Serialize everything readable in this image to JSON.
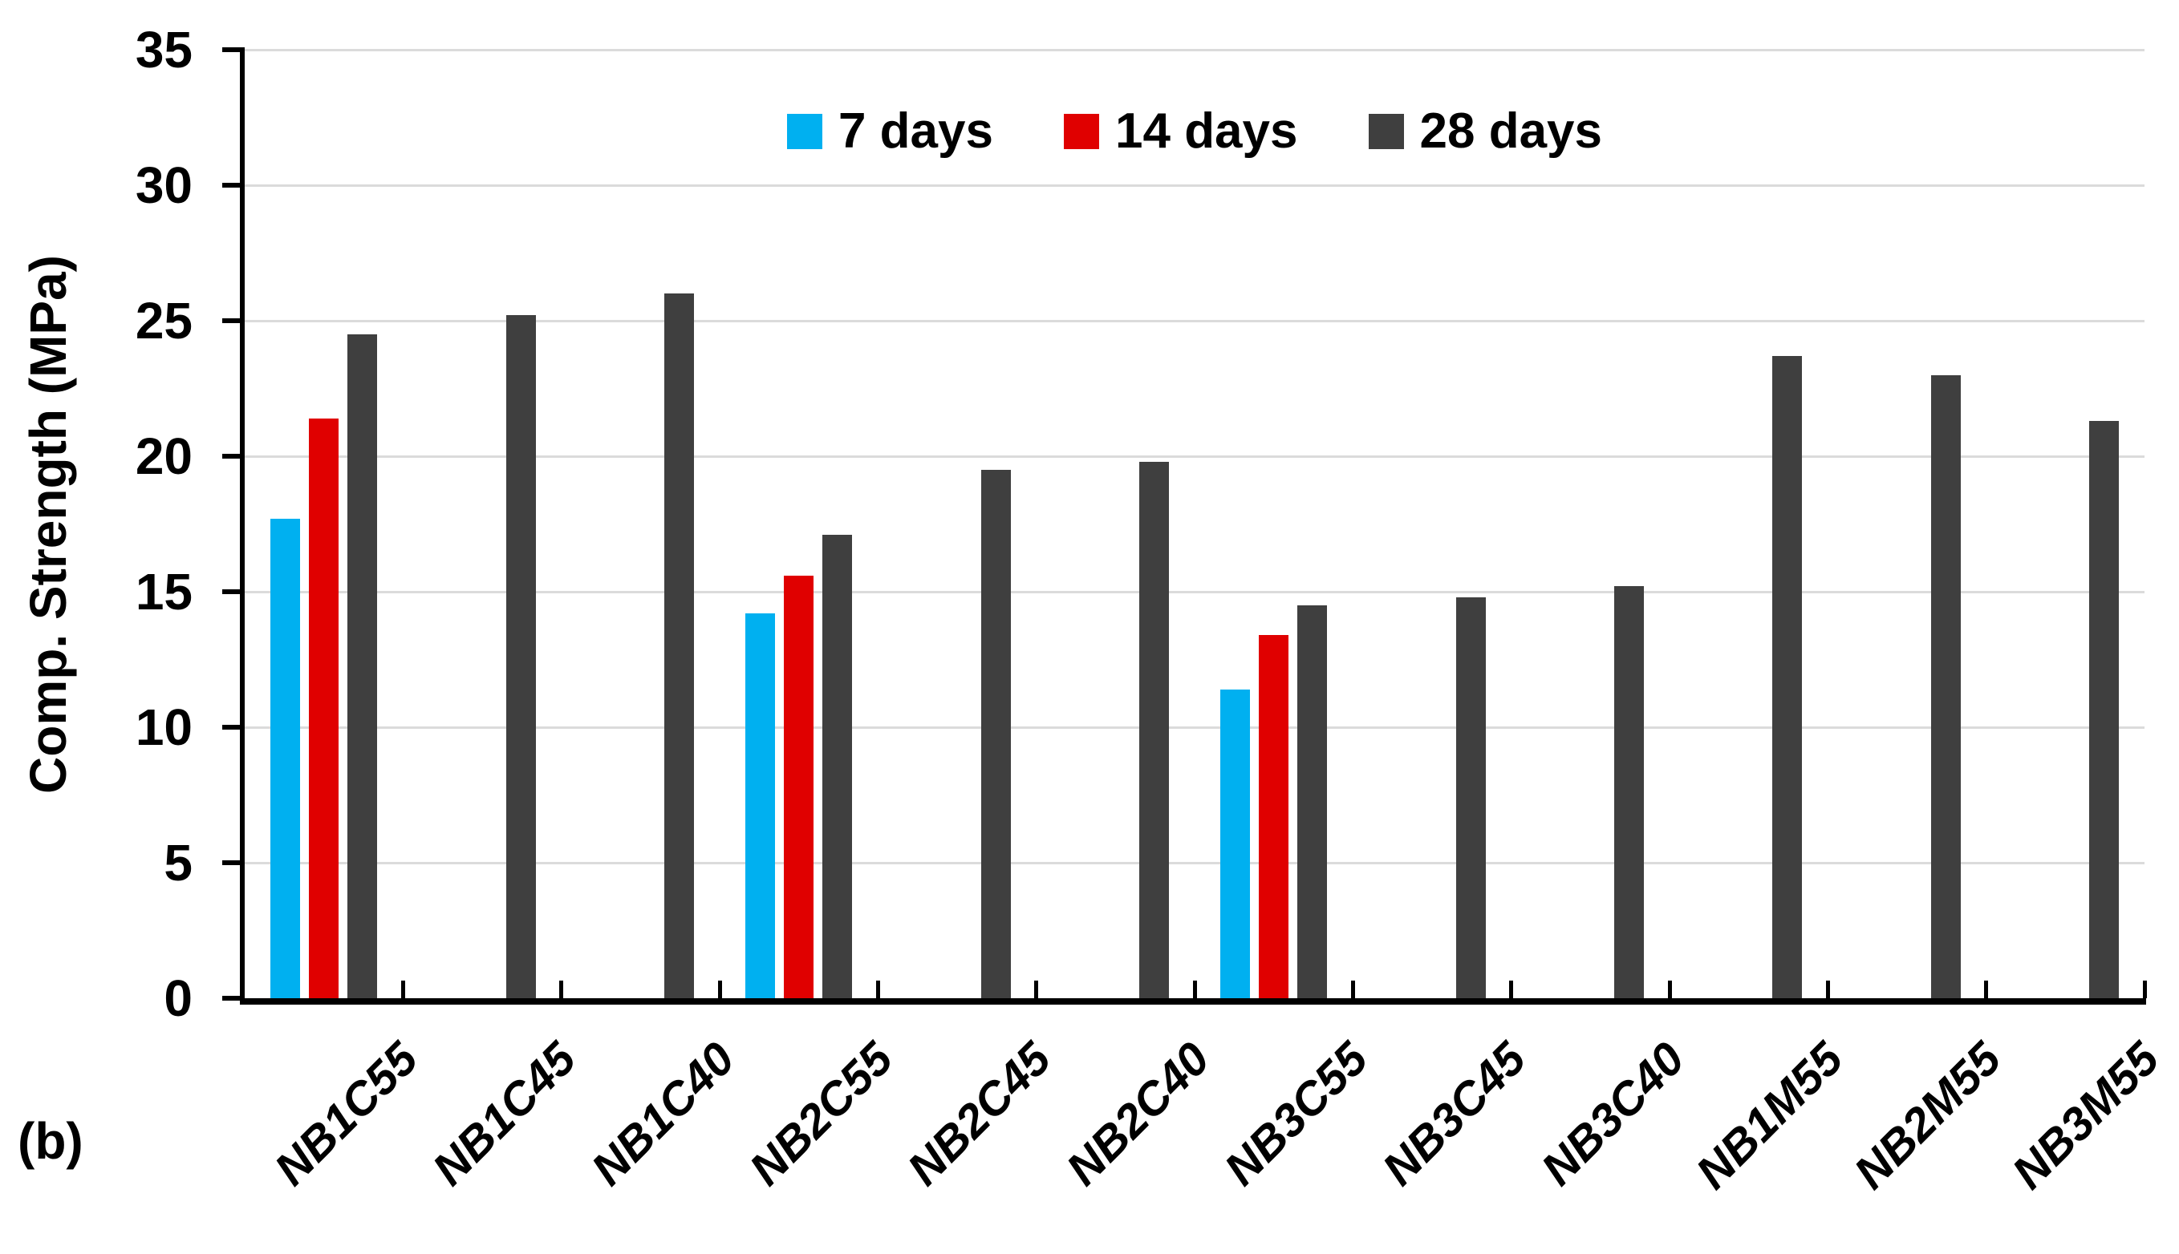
{
  "figure_label": "(b)",
  "colors": {
    "series_7d": "#00B0F0",
    "series_14d": "#E00000",
    "series_28d": "#3F3F3F",
    "gridline": "#DBDBDB",
    "axis": "#000000",
    "background": "#FFFFFF"
  },
  "chart_data": {
    "type": "bar",
    "title": "",
    "xlabel": "",
    "ylabel": "Comp. Strength (MPa)",
    "ylim": [
      0,
      35
    ],
    "yticks": [
      0,
      5,
      10,
      15,
      20,
      25,
      30,
      35
    ],
    "grid": true,
    "legend_position": "top-center",
    "categories": [
      "NB1C55",
      "NB1C45",
      "NB1C40",
      "NB2C55",
      "NB2C45",
      "NB2C40",
      "NB3C55",
      "NB3C45",
      "NB3C40",
      "NB1M55",
      "NB2M55",
      "NB3M55"
    ],
    "series": [
      {
        "name": "7 days",
        "color": "#00B0F0",
        "values": [
          17.7,
          null,
          null,
          14.2,
          null,
          null,
          11.4,
          null,
          null,
          null,
          null,
          null
        ]
      },
      {
        "name": "14 days",
        "color": "#E00000",
        "values": [
          21.4,
          null,
          null,
          15.6,
          null,
          null,
          13.4,
          null,
          null,
          null,
          null,
          null
        ]
      },
      {
        "name": "28 days",
        "color": "#3F3F3F",
        "values": [
          24.5,
          25.2,
          26.0,
          17.1,
          19.5,
          19.8,
          14.5,
          14.8,
          15.2,
          23.7,
          23.0,
          21.3
        ]
      }
    ]
  }
}
